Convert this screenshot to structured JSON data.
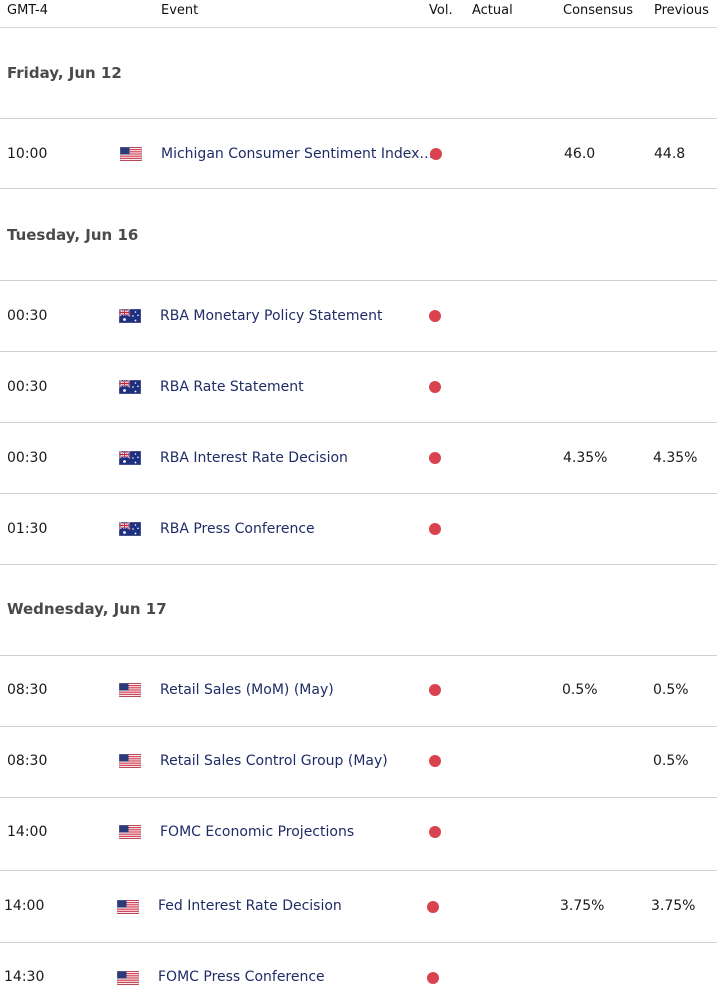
{
  "header": {
    "timezone": "GMT-4",
    "event": "Event",
    "vol": "Vol.",
    "actual": "Actual",
    "consensus": "Consensus",
    "previous": "Previous"
  },
  "colors": {
    "high_volatility_dot": "#d94350",
    "event_text": "#1f2c66"
  },
  "days": [
    {
      "label": "Friday, Jun 12"
    },
    {
      "label": "Tuesday, Jun 16"
    },
    {
      "label": "Wednesday, Jun 17"
    }
  ],
  "events": [
    {
      "time": "10:00",
      "flag": "us-flag-icon",
      "name": "Michigan Consumer Sentiment Index…",
      "volatility": "high",
      "actual": "",
      "consensus": "46.0",
      "previous": "44.8"
    },
    {
      "time": "00:30",
      "flag": "au-flag-icon",
      "name": "RBA Monetary Policy Statement",
      "volatility": "high",
      "actual": "",
      "consensus": "",
      "previous": ""
    },
    {
      "time": "00:30",
      "flag": "au-flag-icon",
      "name": "RBA Rate Statement",
      "volatility": "high",
      "actual": "",
      "consensus": "",
      "previous": ""
    },
    {
      "time": "00:30",
      "flag": "au-flag-icon",
      "name": "RBA Interest Rate Decision",
      "volatility": "high",
      "actual": "",
      "consensus": "4.35%",
      "previous": "4.35%"
    },
    {
      "time": "01:30",
      "flag": "au-flag-icon",
      "name": "RBA Press Conference",
      "volatility": "high",
      "actual": "",
      "consensus": "",
      "previous": ""
    },
    {
      "time": "08:30",
      "flag": "us-flag-icon",
      "name": "Retail Sales (MoM) (May)",
      "volatility": "high",
      "actual": "",
      "consensus": "0.5%",
      "previous": "0.5%"
    },
    {
      "time": "08:30",
      "flag": "us-flag-icon",
      "name": "Retail Sales Control Group (May)",
      "volatility": "high",
      "actual": "",
      "consensus": "",
      "previous": "0.5%"
    },
    {
      "time": "14:00",
      "flag": "us-flag-icon",
      "name": "FOMC Economic Projections",
      "volatility": "high",
      "actual": "",
      "consensus": "",
      "previous": ""
    },
    {
      "time": "14:00",
      "flag": "us-flag-icon",
      "name": "Fed Interest Rate Decision",
      "volatility": "high",
      "actual": "",
      "consensus": "3.75%",
      "previous": "3.75%"
    },
    {
      "time": "14:30",
      "flag": "us-flag-icon",
      "name": "FOMC Press Conference",
      "volatility": "high",
      "actual": "",
      "consensus": "",
      "previous": ""
    }
  ]
}
